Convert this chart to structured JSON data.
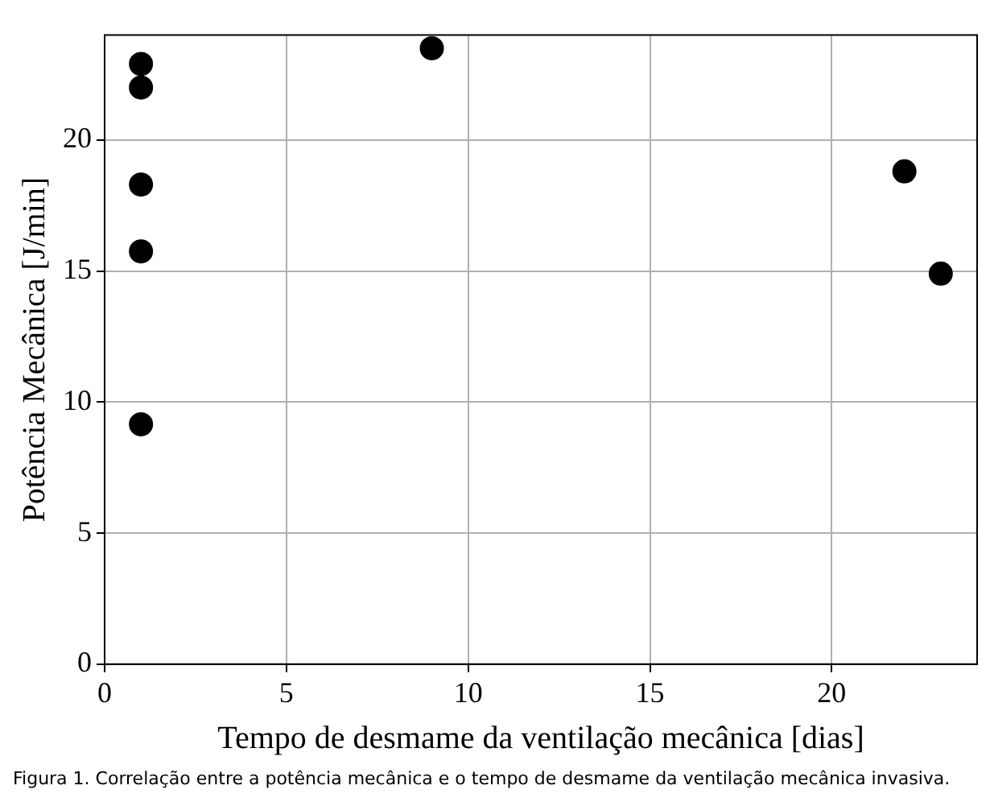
{
  "chart_data": {
    "type": "scatter",
    "xlabel": "Tempo de desmame da ventilação mecânica [dias]",
    "ylabel": "Potência Mecânica [J/min]",
    "x": [
      1,
      1,
      1,
      1,
      1,
      9,
      22,
      23
    ],
    "series": [
      {
        "color": "#000000",
        "values": [
          22.9,
          22.0,
          18.3,
          15.75,
          9.15,
          23.5,
          18.8,
          14.9
        ]
      }
    ],
    "xlim": [
      0,
      24
    ],
    "xticks": [
      0,
      5,
      10,
      15,
      20
    ],
    "ylim": [
      0,
      24
    ],
    "yticks": [
      0,
      5,
      10,
      15,
      20
    ],
    "grid": true,
    "legend": false,
    "marker": "circle",
    "annotations": [
      "Figura 1. Correlação entre a potência mecânica e o tempo de desmame da ventilação mecânica invasiva."
    ]
  }
}
